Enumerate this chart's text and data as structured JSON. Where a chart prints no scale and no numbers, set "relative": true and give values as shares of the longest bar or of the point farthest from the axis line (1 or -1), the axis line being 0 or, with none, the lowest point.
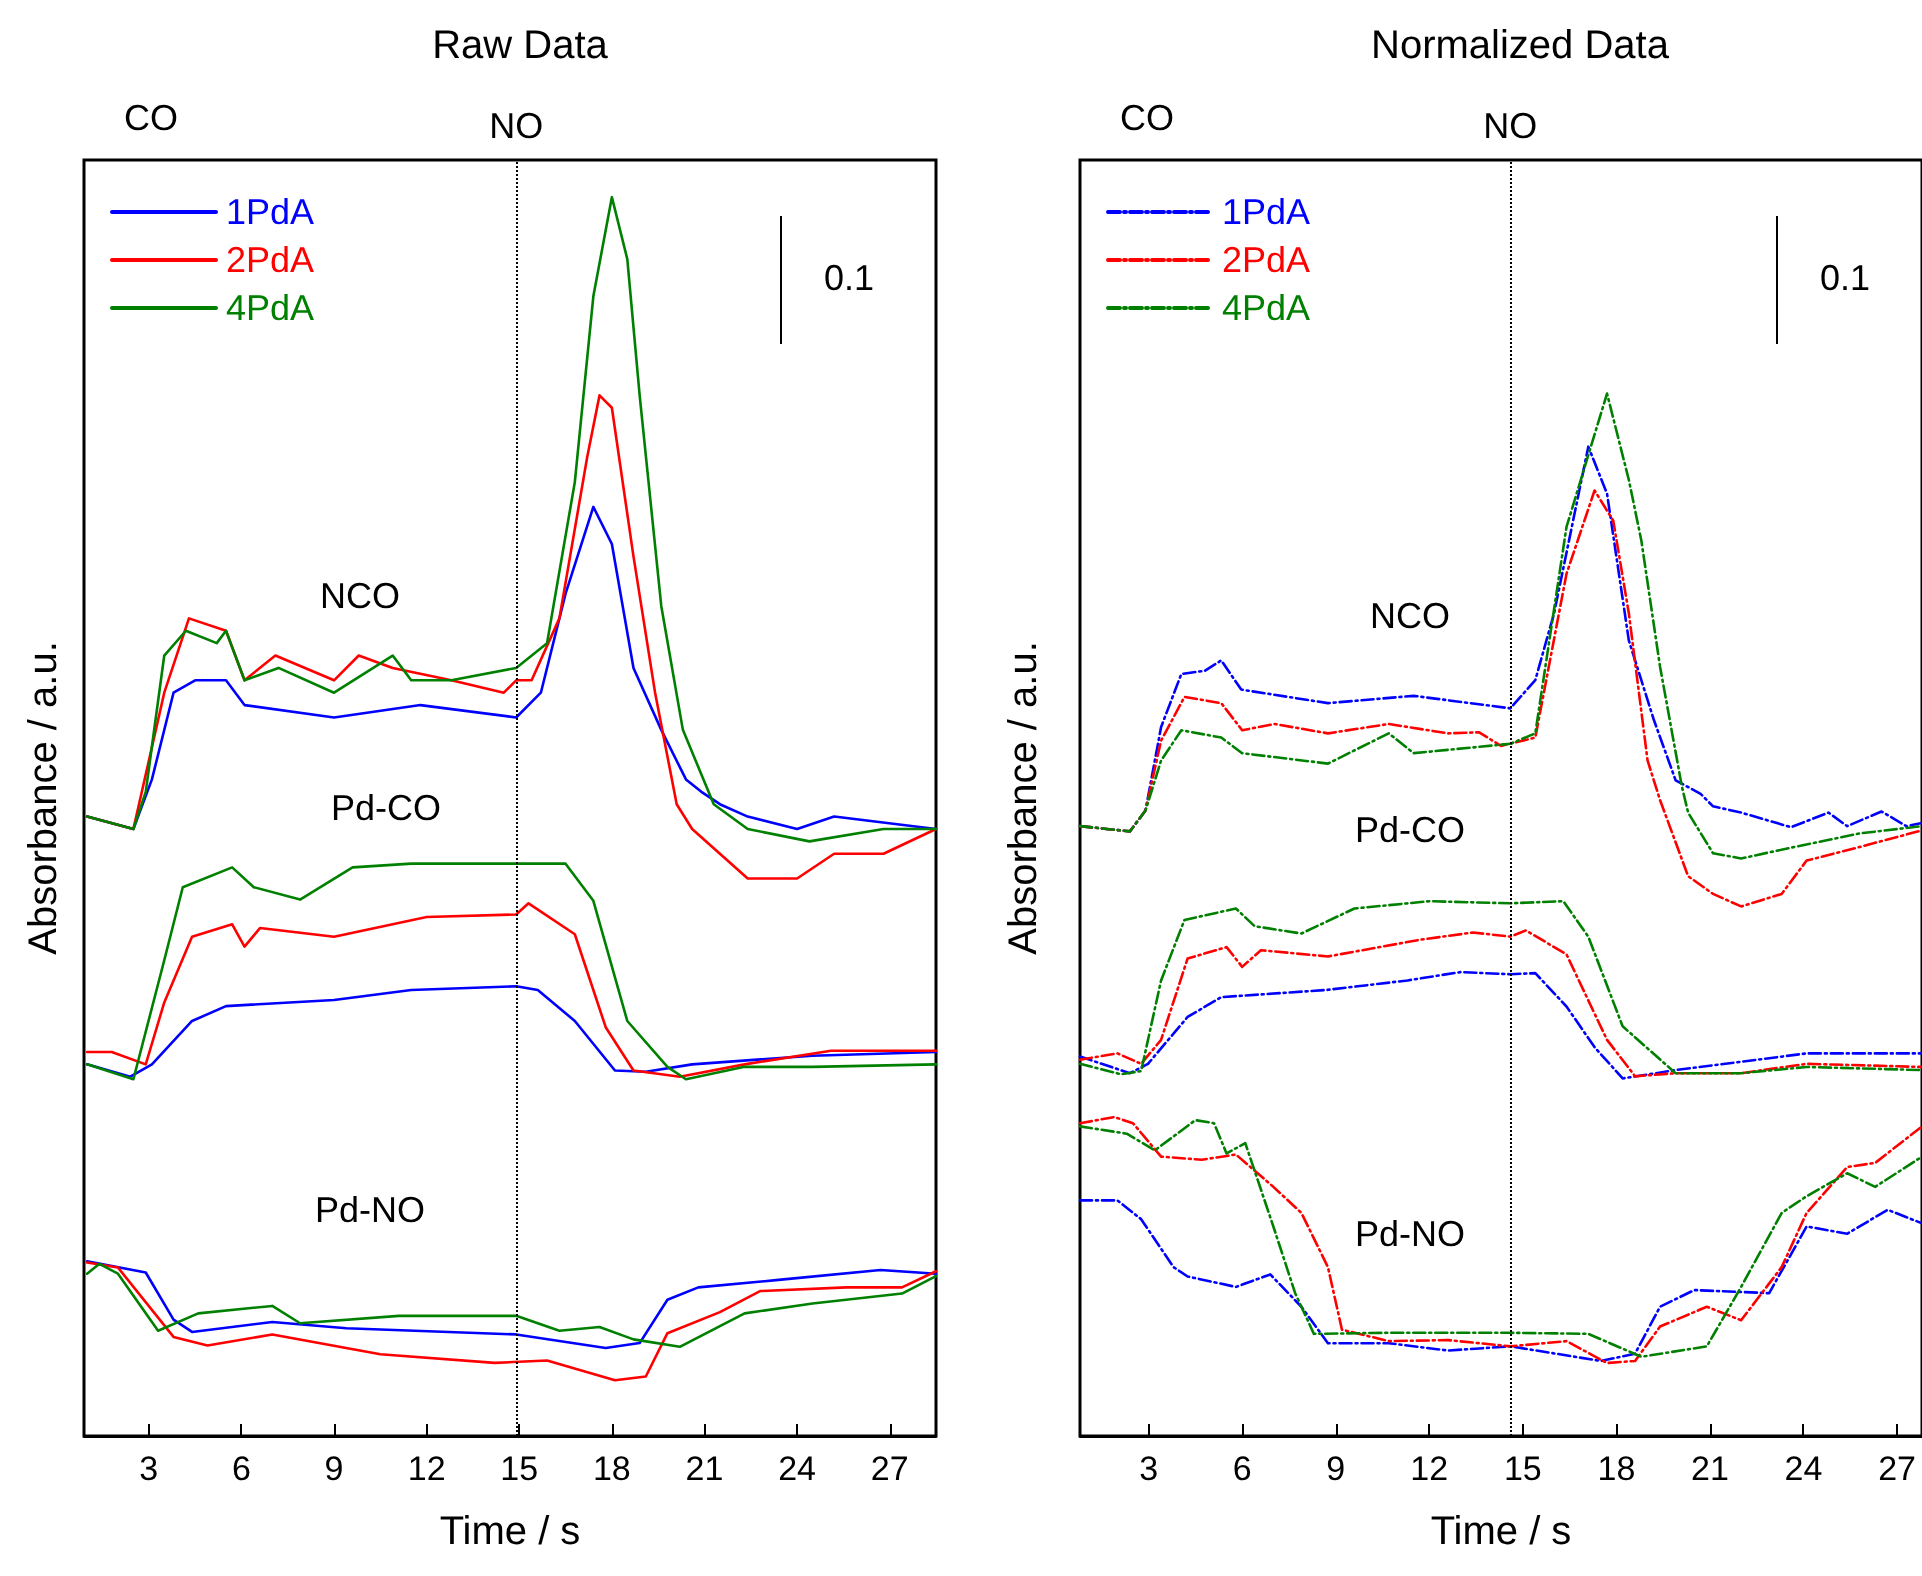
{
  "chart_data": [
    {
      "type": "line",
      "title": "Raw Data",
      "xlabel": "Time / s",
      "ylabel": "Absorbance / a.u.",
      "relative": true,
      "xlim": [
        0.9,
        28.5
      ],
      "xticks": [
        3,
        6,
        9,
        12,
        15,
        18,
        21,
        24,
        27
      ],
      "legend": "top left",
      "line_style": "solid",
      "marker": "none",
      "ref_lines": [
        {
          "axis": "x",
          "value": 14.9,
          "label": "NO",
          "line_style": "dotted",
          "color": "#000000"
        }
      ],
      "annotations": [
        "CO",
        "0.1",
        "NCO",
        "Pd-CO",
        "Pd-NO"
      ],
      "series": [
        {
          "name": "1PdA",
          "color": "#0000ff",
          "x": [
            1,
            2.5,
            3.1,
            3.8,
            4.5,
            5.5,
            6.1,
            9,
            11.8,
            14.9,
            15.7,
            16.5,
            17.4,
            18,
            18.7,
            19.6,
            20.4,
            20.9,
            21.5,
            22.4,
            24,
            25.2,
            28.5
          ],
          "values": [
            0.5,
            0.49,
            0.53,
            0.6,
            0.61,
            0.61,
            0.59,
            0.58,
            0.59,
            0.58,
            0.6,
            0.68,
            0.75,
            0.72,
            0.62,
            0.57,
            0.53,
            0.52,
            0.51,
            0.5,
            0.49,
            0.5,
            0.49
          ]
        },
        {
          "name": "2PdA",
          "color": "#ff0000",
          "x": [
            1,
            2.5,
            3.5,
            4.3,
            5.5,
            6.1,
            7.1,
            9,
            9.8,
            10.9,
            12.8,
            14.5,
            14.9,
            15.4,
            16.3,
            17.2,
            17.6,
            18,
            18.7,
            19.4,
            20.1,
            20.6,
            21.5,
            22.4,
            24,
            25.2,
            26.8,
            28.5
          ],
          "values": [
            0.5,
            0.49,
            0.6,
            0.66,
            0.65,
            0.61,
            0.63,
            0.61,
            0.63,
            0.62,
            0.61,
            0.6,
            0.61,
            0.61,
            0.66,
            0.79,
            0.84,
            0.83,
            0.71,
            0.6,
            0.51,
            0.49,
            0.47,
            0.45,
            0.45,
            0.47,
            0.47,
            0.49
          ]
        },
        {
          "name": "4PdA",
          "color": "#008000",
          "x": [
            1,
            2.5,
            2.9,
            3.5,
            4.2,
            5.2,
            5.5,
            6.1,
            7.2,
            9,
            10.9,
            11.5,
            12.8,
            14.9,
            15.9,
            16.8,
            17.4,
            18,
            18.5,
            18.9,
            19.6,
            20.3,
            21.3,
            22.4,
            24.4,
            26.8,
            28.5
          ],
          "values": [
            0.5,
            0.49,
            0.52,
            0.63,
            0.65,
            0.64,
            0.65,
            0.61,
            0.62,
            0.6,
            0.63,
            0.61,
            0.61,
            0.62,
            0.64,
            0.77,
            0.92,
            1,
            0.95,
            0.84,
            0.67,
            0.57,
            0.51,
            0.49,
            0.48,
            0.49,
            0.49
          ]
        },
        {
          "color": "#0000ff",
          "x": [
            1,
            2.4,
            3.1,
            4.4,
            5.5,
            9,
            11.5,
            14.9,
            15.6,
            16.8,
            18.1,
            19.1,
            20.6,
            24.5,
            28.5
          ],
          "values": [
            0.3,
            0.29,
            0.3,
            0.335,
            0.347,
            0.352,
            0.36,
            0.363,
            0.36,
            0.335,
            0.295,
            0.294,
            0.3,
            0.307,
            0.31
          ]
        },
        {
          "color": "#ff0000",
          "x": [
            1,
            1.8,
            2.9,
            3.5,
            4.4,
            5.7,
            6.1,
            6.6,
            9,
            12,
            14.9,
            15.3,
            16.8,
            17.8,
            18.7,
            20.2,
            22.3,
            25.1,
            28.5
          ],
          "values": [
            0.31,
            0.31,
            0.3,
            0.35,
            0.403,
            0.413,
            0.395,
            0.41,
            0.403,
            0.419,
            0.421,
            0.43,
            0.405,
            0.33,
            0.295,
            0.29,
            0.3,
            0.311,
            0.311
          ]
        },
        {
          "color": "#008000",
          "x": [
            1,
            2.5,
            3.5,
            4.1,
            5.7,
            6.4,
            7.9,
            9.6,
            11.5,
            14.9,
            16.5,
            17.4,
            18.5,
            19.8,
            20.4,
            22.3,
            24.5,
            28.5
          ],
          "values": [
            0.3,
            0.288,
            0.384,
            0.443,
            0.459,
            0.443,
            0.433,
            0.459,
            0.462,
            0.462,
            0.462,
            0.432,
            0.335,
            0.298,
            0.288,
            0.298,
            0.298,
            0.3
          ]
        },
        {
          "color": "#0000ff",
          "x": [
            1,
            2.9,
            3.8,
            4.4,
            7,
            9.4,
            14.9,
            17.8,
            18.9,
            19.8,
            20.8,
            23.4,
            26.7,
            28.5
          ],
          "values": [
            0.141,
            0.132,
            0.094,
            0.084,
            0.092,
            0.087,
            0.082,
            0.071,
            0.075,
            0.11,
            0.12,
            0.126,
            0.134,
            0.131
          ]
        },
        {
          "color": "#ff0000",
          "x": [
            1,
            2,
            3.8,
            4.9,
            7,
            10.5,
            14.2,
            15.9,
            18.1,
            19.1,
            19.8,
            21.5,
            22.8,
            25.6,
            27.4,
            28.5
          ],
          "values": [
            0.14,
            0.136,
            0.08,
            0.073,
            0.082,
            0.066,
            0.059,
            0.061,
            0.045,
            0.048,
            0.083,
            0.1,
            0.117,
            0.12,
            0.12,
            0.133
          ]
        },
        {
          "color": "#008000",
          "x": [
            1,
            1.4,
            2,
            3.3,
            4.6,
            7,
            7.9,
            11.1,
            14.9,
            16.3,
            17.6,
            18.7,
            20.2,
            22.3,
            24.5,
            27.4,
            28.5
          ],
          "values": [
            0.131,
            0.139,
            0.131,
            0.085,
            0.099,
            0.105,
            0.091,
            0.097,
            0.097,
            0.085,
            0.088,
            0.078,
            0.072,
            0.099,
            0.107,
            0.115,
            0.129
          ]
        }
      ]
    },
    {
      "type": "line",
      "title": "Normalized Data",
      "xlabel": "Time / s",
      "ylabel": "Absorbance / a.u.",
      "relative": true,
      "xlim": [
        0.8,
        27.8
      ],
      "xticks": [
        3,
        6,
        9,
        12,
        15,
        18,
        21,
        24,
        27
      ],
      "legend": "top left",
      "line_style": "dashed",
      "marker": "none",
      "ref_lines": [
        {
          "axis": "x",
          "value": 14.6,
          "label": "NO",
          "line_style": "dotted",
          "color": "#000000"
        }
      ],
      "annotations": [
        "CO",
        "0.1",
        "NCO",
        "Pd-CO",
        "Pd-NO"
      ],
      "series": [
        {
          "name": "1PdA",
          "color": "#0000ff",
          "x": [
            0.8,
            2.4,
            2.9,
            3.4,
            4.05,
            4.8,
            5.33,
            5.97,
            8.75,
            11.5,
            14.6,
            15.4,
            16,
            17.1,
            17.7,
            18.4,
            19.2,
            19.9,
            20.7,
            21.1,
            22,
            23.6,
            24.8,
            25.4,
            26.5,
            27.3,
            27.8
          ],
          "values": [
            0.585,
            0.58,
            0.6,
            0.68,
            0.731,
            0.734,
            0.744,
            0.716,
            0.703,
            0.71,
            0.698,
            0.725,
            0.789,
            0.949,
            0.904,
            0.763,
            0.687,
            0.629,
            0.616,
            0.604,
            0.598,
            0.584,
            0.598,
            0.585,
            0.599,
            0.585,
            0.588
          ]
        },
        {
          "name": "2PdA",
          "color": "#ff0000",
          "x": [
            0.8,
            2.4,
            2.9,
            3.4,
            4.15,
            5.33,
            6,
            7.04,
            8.75,
            10.7,
            12.6,
            13.6,
            14.3,
            15.4,
            16.4,
            17.3,
            17.9,
            18.4,
            19,
            19.4,
            20.3,
            21.1,
            22,
            23.3,
            24.1,
            25.8,
            27.8
          ],
          "values": [
            0.585,
            0.58,
            0.6,
            0.667,
            0.709,
            0.703,
            0.677,
            0.683,
            0.674,
            0.683,
            0.674,
            0.675,
            0.662,
            0.67,
            0.827,
            0.907,
            0.878,
            0.789,
            0.648,
            0.61,
            0.537,
            0.52,
            0.508,
            0.52,
            0.552,
            0.565,
            0.581
          ]
        },
        {
          "name": "4PdA",
          "color": "#008000",
          "x": [
            0.8,
            2.4,
            2.9,
            3.4,
            4.05,
            5.33,
            6,
            8.75,
            10.7,
            11.5,
            14.6,
            15.4,
            16.4,
            17.7,
            18.4,
            18.8,
            19.4,
            20.1,
            20.3,
            21.1,
            22,
            23.7,
            25.8,
            27.8
          ],
          "values": [
            0.585,
            0.58,
            0.6,
            0.648,
            0.677,
            0.67,
            0.655,
            0.645,
            0.674,
            0.655,
            0.664,
            0.674,
            0.872,
            1,
            0.917,
            0.859,
            0.738,
            0.623,
            0.598,
            0.559,
            0.554,
            0.565,
            0.578,
            0.585
          ]
        },
        {
          "color": "#0000ff",
          "x": [
            0.8,
            2.4,
            2.98,
            4.25,
            5.33,
            8.75,
            11.3,
            13,
            14.6,
            15.4,
            16.4,
            17.3,
            18.2,
            19.9,
            24.1,
            27.8
          ],
          "values": [
            0.364,
            0.348,
            0.357,
            0.402,
            0.421,
            0.428,
            0.437,
            0.445,
            0.443,
            0.444,
            0.412,
            0.373,
            0.343,
            0.351,
            0.367,
            0.367
          ]
        },
        {
          "color": "#ff0000",
          "x": [
            0.8,
            2,
            2.76,
            3.4,
            4.25,
            5.5,
            6,
            6.6,
            8.75,
            11.7,
            13.4,
            14.6,
            15.1,
            16.4,
            17.7,
            18.6,
            19.9,
            22,
            24.1,
            27.8
          ],
          "values": [
            0.361,
            0.367,
            0.357,
            0.38,
            0.458,
            0.469,
            0.45,
            0.466,
            0.46,
            0.476,
            0.483,
            0.479,
            0.485,
            0.462,
            0.38,
            0.345,
            0.348,
            0.348,
            0.357,
            0.354
          ]
        },
        {
          "color": "#008000",
          "x": [
            0.8,
            2.12,
            2.76,
            3.4,
            4.15,
            5.8,
            6.4,
            7.9,
            9.6,
            12,
            14.6,
            16.3,
            17.1,
            18.2,
            19.9,
            22,
            24.1,
            27.8
          ],
          "values": [
            0.357,
            0.347,
            0.35,
            0.437,
            0.495,
            0.506,
            0.489,
            0.482,
            0.506,
            0.513,
            0.511,
            0.513,
            0.479,
            0.393,
            0.348,
            0.348,
            0.354,
            0.351
          ]
        },
        {
          "color": "#0000ff",
          "x": [
            0.8,
            2,
            2.76,
            3.8,
            4.25,
            5.8,
            6.9,
            7.9,
            8.75,
            10.7,
            12.6,
            14.6,
            17.5,
            18.6,
            19.4,
            20.5,
            22.9,
            24.1,
            25.4,
            26.7,
            27.8
          ],
          "values": [
            0.226,
            0.226,
            0.208,
            0.162,
            0.153,
            0.143,
            0.155,
            0.124,
            0.089,
            0.089,
            0.082,
            0.086,
            0.072,
            0.079,
            0.124,
            0.14,
            0.137,
            0.201,
            0.194,
            0.217,
            0.204
          ]
        },
        {
          "color": "#ff0000",
          "x": [
            0.8,
            1.9,
            2.5,
            3.4,
            4.7,
            5.8,
            7,
            7.9,
            8.75,
            9.2,
            10.7,
            12.6,
            14.6,
            16.4,
            17.7,
            18.6,
            19.4,
            20.9,
            22,
            23.3,
            24.1,
            25.4,
            26.3,
            27.8
          ],
          "values": [
            0.3,
            0.306,
            0.3,
            0.268,
            0.265,
            0.27,
            0.239,
            0.214,
            0.162,
            0.102,
            0.091,
            0.092,
            0.086,
            0.091,
            0.07,
            0.072,
            0.105,
            0.124,
            0.111,
            0.162,
            0.214,
            0.258,
            0.262,
            0.297
          ]
        },
        {
          "color": "#008000",
          "x": [
            0.8,
            2.3,
            3.2,
            4.5,
            5.1,
            5.5,
            6.1,
            7,
            7.7,
            8.3,
            10.7,
            14.6,
            17.1,
            18.8,
            20.9,
            22,
            23.3,
            24.1,
            25.4,
            26.3,
            27.8
          ],
          "values": [
            0.297,
            0.29,
            0.274,
            0.303,
            0.3,
            0.271,
            0.281,
            0.201,
            0.137,
            0.098,
            0.099,
            0.099,
            0.098,
            0.076,
            0.086,
            0.143,
            0.214,
            0.23,
            0.252,
            0.239,
            0.268
          ]
        }
      ]
    }
  ]
}
